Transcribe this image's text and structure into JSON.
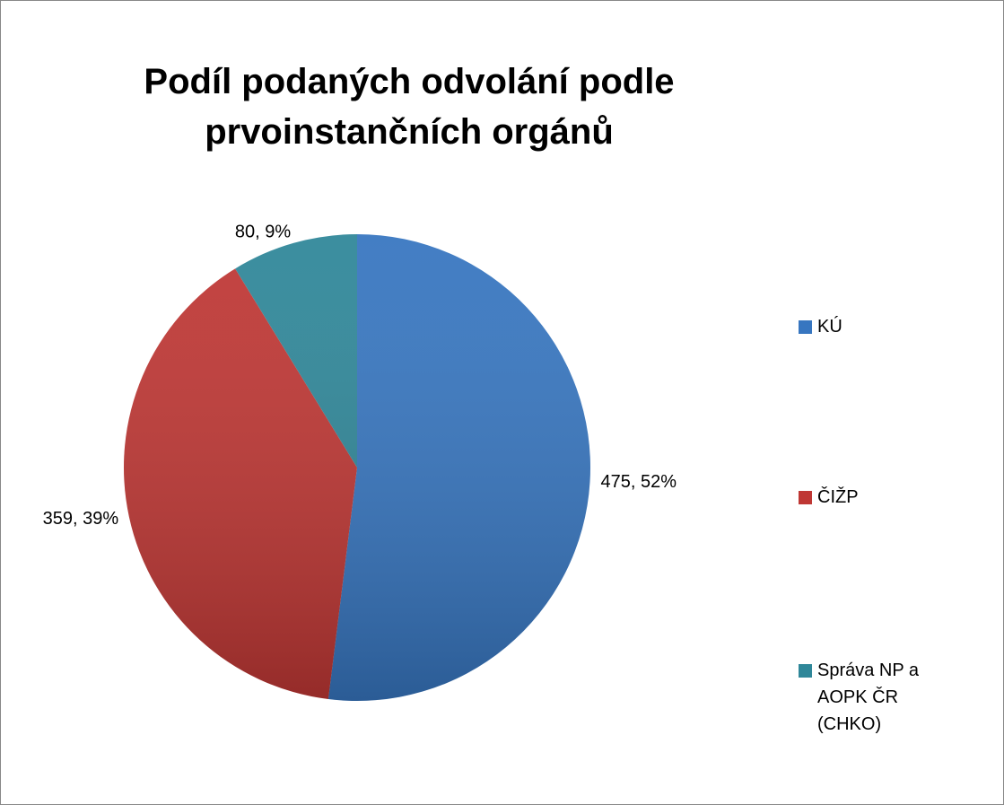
{
  "chart_data": {
    "type": "pie",
    "title": "Podíl podaných odvolání podle prvoinstančních orgánů",
    "categories": [
      "KÚ",
      "ČIŽP",
      "Správa NP a AOPK ČR (CHKO)"
    ],
    "values": [
      475,
      359,
      80
    ],
    "value_labels": [
      "475, 52%",
      "359, 39%",
      "80, 9%"
    ],
    "colors": [
      "#3776c0",
      "#bf3734",
      "#2f8799"
    ],
    "legend": "right"
  }
}
